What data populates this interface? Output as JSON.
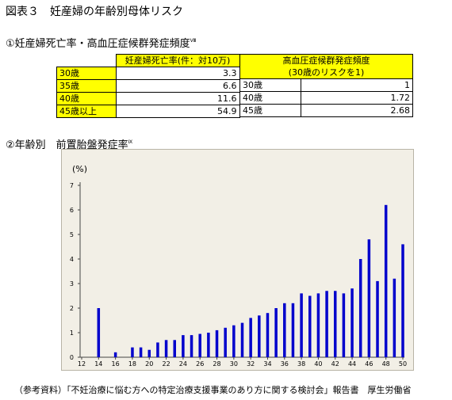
{
  "title": "図表３　妊産婦の年齢別母体リスク",
  "section1": {
    "label": "①妊産婦死亡率・高血圧症候群発症頻度",
    "sup": "Ⅷ"
  },
  "table1": {
    "header": "妊産婦死亡率(件：対10万)",
    "rows": [
      {
        "age": "30歳",
        "value": "3.3"
      },
      {
        "age": "35歳",
        "value": "6.6"
      },
      {
        "age": "40歳",
        "value": "11.6"
      },
      {
        "age": "45歳以上",
        "value": "54.9"
      }
    ]
  },
  "table2": {
    "header_line1": "高血圧症候群発症頻度",
    "header_line2": "(30歳のリスクを1)",
    "rows": [
      {
        "age": "30歳",
        "value": "1"
      },
      {
        "age": "40歳",
        "value": "1.72"
      },
      {
        "age": "45歳",
        "value": "2.68"
      }
    ]
  },
  "section2": {
    "label": "②年齢別　前置胎盤発症率",
    "sup": "Ⅸ"
  },
  "chart_data": {
    "type": "bar",
    "ylabel": "(%)",
    "ylim": [
      0,
      7
    ],
    "yticks": [
      "0",
      "1",
      "2",
      "3",
      "4",
      "5",
      "6",
      "7"
    ],
    "xticks": [
      "12",
      "14",
      "16",
      "18",
      "20",
      "22",
      "24",
      "26",
      "28",
      "30",
      "32",
      "34",
      "36",
      "38",
      "40",
      "42",
      "44",
      "46",
      "48",
      "50"
    ],
    "x": [
      14,
      16,
      18,
      19,
      20,
      21,
      22,
      23,
      24,
      25,
      26,
      27,
      28,
      29,
      30,
      31,
      32,
      33,
      34,
      35,
      36,
      37,
      38,
      39,
      40,
      41,
      42,
      43,
      44,
      45,
      46,
      47,
      48,
      49,
      50
    ],
    "values": [
      2.0,
      0.2,
      0.4,
      0.4,
      0.3,
      0.6,
      0.7,
      0.7,
      0.9,
      0.9,
      0.95,
      1.0,
      1.1,
      1.2,
      1.3,
      1.4,
      1.6,
      1.7,
      1.8,
      2.0,
      2.2,
      2.2,
      2.6,
      2.5,
      2.6,
      2.7,
      2.7,
      2.6,
      2.8,
      4.0,
      4.8,
      3.1,
      6.2,
      3.2,
      4.6
    ],
    "bar_color": "#0000cc",
    "grid": false
  },
  "source": "（参考資料）「不妊治療に悩む方への特定治療支援事業のあり方に関する検討会」報告書　厚生労働省"
}
